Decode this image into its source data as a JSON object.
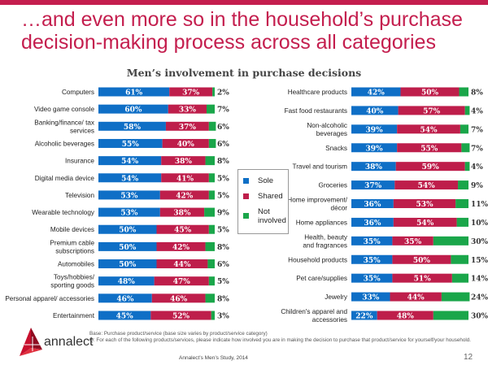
{
  "slide": {
    "headline": "…and even more so in the household’s purchase decision-making process across all categories",
    "brand": "annalect",
    "footnote_base": "Base: Purchase product/service (base size varies by product/service category)",
    "footnote_q": "Q: For each of the following products/services, please indicate how involved you are in making the decision to purchase that product/service for yourself/your household.",
    "source": "Annalect’s Men’s Study, 2014",
    "page_number": "12",
    "colors": {
      "accent": "#c41e4e",
      "sole": "#0f6fc6",
      "shared": "#be1e4b",
      "not_involved": "#1aa64a"
    }
  },
  "legend": {
    "items": [
      {
        "label": "Sole",
        "color": "#0f6fc6"
      },
      {
        "label": "Shared",
        "color": "#be1e4b"
      },
      {
        "label": "Not involved",
        "color": "#1aa64a"
      }
    ]
  },
  "chart_data": [
    {
      "type": "bar",
      "orientation": "horizontal-stacked-100",
      "title": "Men’s involvement in purchase decisions",
      "categories": [
        "Computers",
        "Video game console",
        "Banking/finance/ tax services",
        "Alcoholic beverages",
        "Insurance",
        "Digital media device",
        "Television",
        "Wearable technology",
        "Mobile devices",
        "Premium cable subscriptions",
        "Automobiles",
        "Toys/hobbies/ sporting goods",
        "Personal apparel/ accessories",
        "Entertainment"
      ],
      "series": [
        {
          "name": "Sole",
          "values": [
            61,
            60,
            58,
            55,
            54,
            54,
            53,
            53,
            50,
            50,
            50,
            48,
            46,
            45
          ]
        },
        {
          "name": "Shared",
          "values": [
            37,
            33,
            37,
            40,
            38,
            41,
            42,
            38,
            45,
            42,
            44,
            47,
            46,
            52
          ]
        },
        {
          "name": "Not involved",
          "values": [
            2,
            7,
            6,
            6,
            8,
            5,
            5,
            9,
            5,
            8,
            6,
            5,
            8,
            3
          ]
        }
      ],
      "unit": "%",
      "xlim": [
        0,
        100
      ],
      "legend": "center"
    },
    {
      "type": "bar",
      "orientation": "horizontal-stacked-100",
      "title": "Men’s involvement in purchase decisions",
      "categories": [
        "Healthcare products",
        "Fast food restaurants",
        "Non-alcoholic beverages",
        "Snacks",
        "Travel and tourism",
        "Groceries",
        "Home improvement/ décor",
        "Home appliances",
        "Health, beauty and fragrances",
        "Household products",
        "Pet care/supplies",
        "Jewelry",
        "Children's apparel and accessories"
      ],
      "series": [
        {
          "name": "Sole",
          "values": [
            42,
            40,
            39,
            39,
            38,
            37,
            36,
            36,
            35,
            35,
            35,
            33,
            22
          ]
        },
        {
          "name": "Shared",
          "values": [
            50,
            57,
            54,
            55,
            59,
            54,
            53,
            54,
            35,
            50,
            51,
            44,
            48
          ]
        },
        {
          "name": "Not involved",
          "values": [
            8,
            4,
            7,
            7,
            4,
            9,
            11,
            10,
            30,
            15,
            14,
            24,
            30
          ]
        }
      ],
      "unit": "%",
      "xlim": [
        0,
        100
      ],
      "legend": "center"
    }
  ]
}
